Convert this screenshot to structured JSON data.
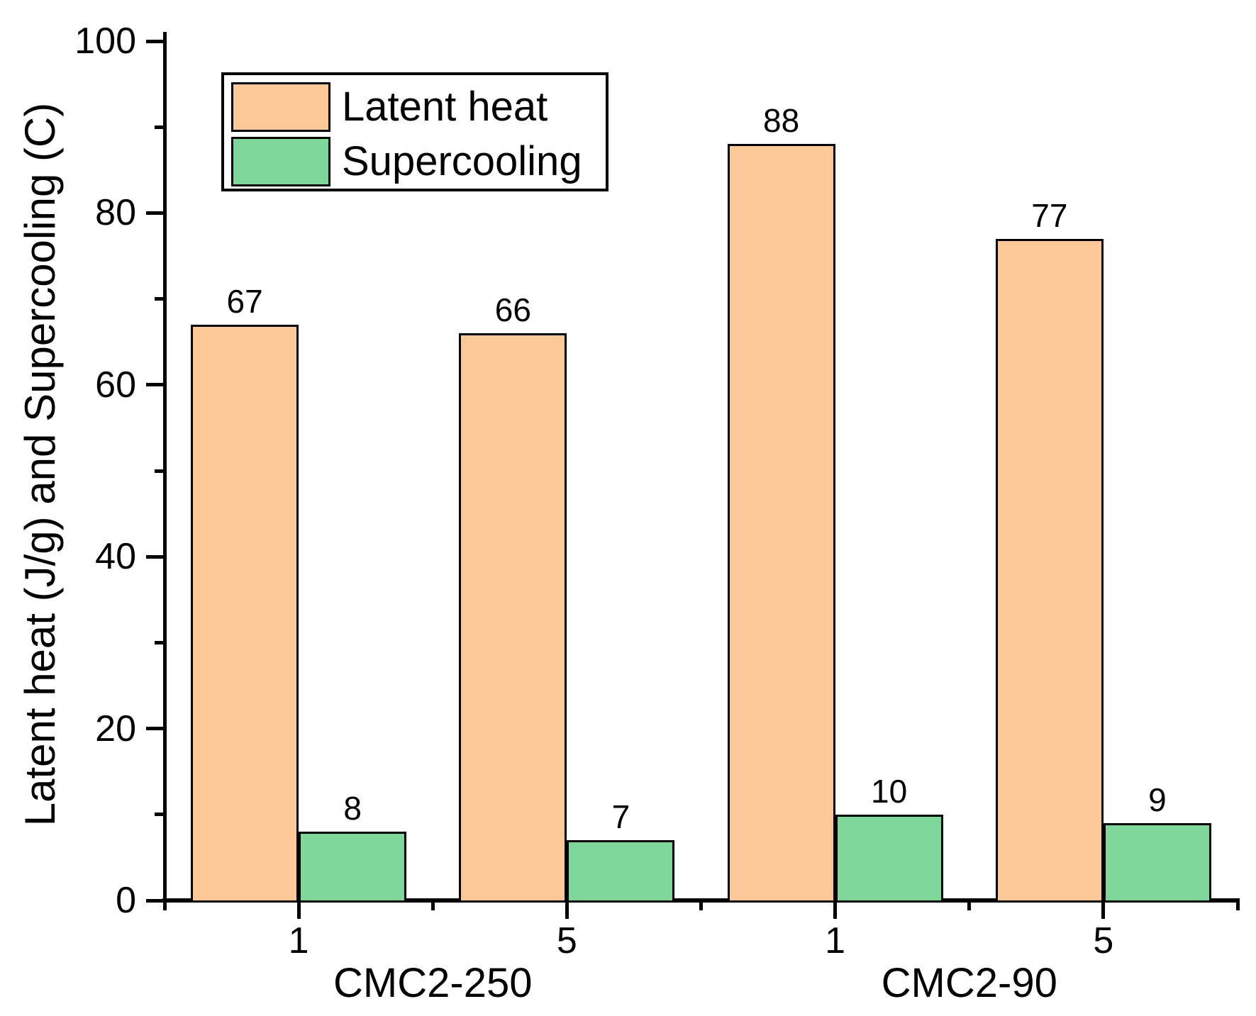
{
  "chart_data": {
    "type": "bar",
    "title": "",
    "ylabel": "Latent heat (J/g) and Supercooling (C)",
    "xlabel": "",
    "ylim": [
      0,
      100
    ],
    "yticks": [
      0,
      20,
      40,
      60,
      80,
      100
    ],
    "minor_yticks": [
      10,
      30,
      50,
      70,
      90
    ],
    "grid": "off",
    "legend_position": "top-left-inside",
    "groups": [
      {
        "label": "CMC2-250",
        "categories": [
          "1",
          "5"
        ]
      },
      {
        "label": "CMC2-90",
        "categories": [
          "1",
          "5"
        ]
      }
    ],
    "x_tick_labels": [
      "1",
      "5",
      "1",
      "5"
    ],
    "series": [
      {
        "name": "Latent heat",
        "color": "#FCC898",
        "border_color": "#000000",
        "values": [
          67,
          66,
          88,
          77
        ]
      },
      {
        "name": "Supercooling",
        "color": "#7ED69B",
        "border_color": "#000000",
        "values": [
          8,
          7,
          10,
          9
        ]
      }
    ],
    "value_labels": {
      "latent_heat": [
        "67",
        "66",
        "88",
        "77"
      ],
      "supercooling": [
        "8",
        "7",
        "10",
        "9"
      ]
    },
    "axis_color": "#000000",
    "background_color": "#ffffff"
  }
}
